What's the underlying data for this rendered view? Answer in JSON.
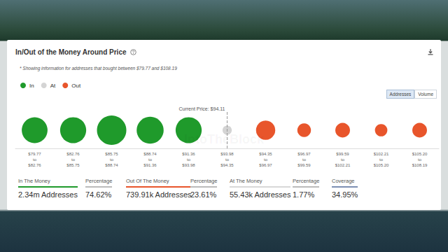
{
  "chart_data": {
    "type": "bubble",
    "title": "In/Out of the Money Around Price",
    "subtitle": "* Showing information for addresses that bought between $79.77 and $108.19",
    "categories": [
      "$79.77\nto\n$82.76",
      "$82.76\nto\n$85.75",
      "$85.75\nto\n$88.74",
      "$88.74\nto\n$91.36",
      "$91.36\nto\n$93.98",
      "$93.98\nto\n$94.35",
      "$94.35\nto\n$96.97",
      "$96.97\nto\n$99.59",
      "$99.59\nto\n$102.21",
      "$102.21\nto\n$105.20",
      "$105.20\nto\n$108.19"
    ],
    "series": [
      {
        "name": "In",
        "color": "#1f9a2b",
        "values": [
          430000,
          440000,
          560000,
          470000,
          440000,
          null,
          null,
          null,
          null,
          null,
          null
        ]
      },
      {
        "name": "At",
        "color": "#d4d4d4",
        "values": [
          null,
          null,
          null,
          null,
          null,
          55430,
          null,
          null,
          null,
          null,
          null
        ]
      },
      {
        "name": "Out",
        "color": "#e8552b",
        "values": [
          null,
          null,
          null,
          null,
          null,
          null,
          240000,
          120000,
          140000,
          100000,
          140000
        ]
      }
    ],
    "annotations": [
      {
        "text": "Current Price: $94.11",
        "category": "$93.98\nto\n$94.35"
      }
    ],
    "legend": "top-left",
    "tick_labels": "x",
    "grid": false
  },
  "panel": {
    "buttons": [
      "Addresses",
      "Volume"
    ],
    "watermark": "IntoTheBlock",
    "stats": [
      {
        "label": "In The Money",
        "value": "2.34m Addresses"
      },
      {
        "label": "Percentage",
        "value": "74.62%"
      },
      {
        "label": "Out Of The Money",
        "value": "739.91k Addresses"
      },
      {
        "label": "Percentage",
        "value": "23.61%"
      },
      {
        "label": "At The Money",
        "value": "55.43k Addresses"
      },
      {
        "label": "Percentage",
        "value": "1.77%"
      },
      {
        "label": "Coverage",
        "value": "34.95%"
      }
    ]
  }
}
